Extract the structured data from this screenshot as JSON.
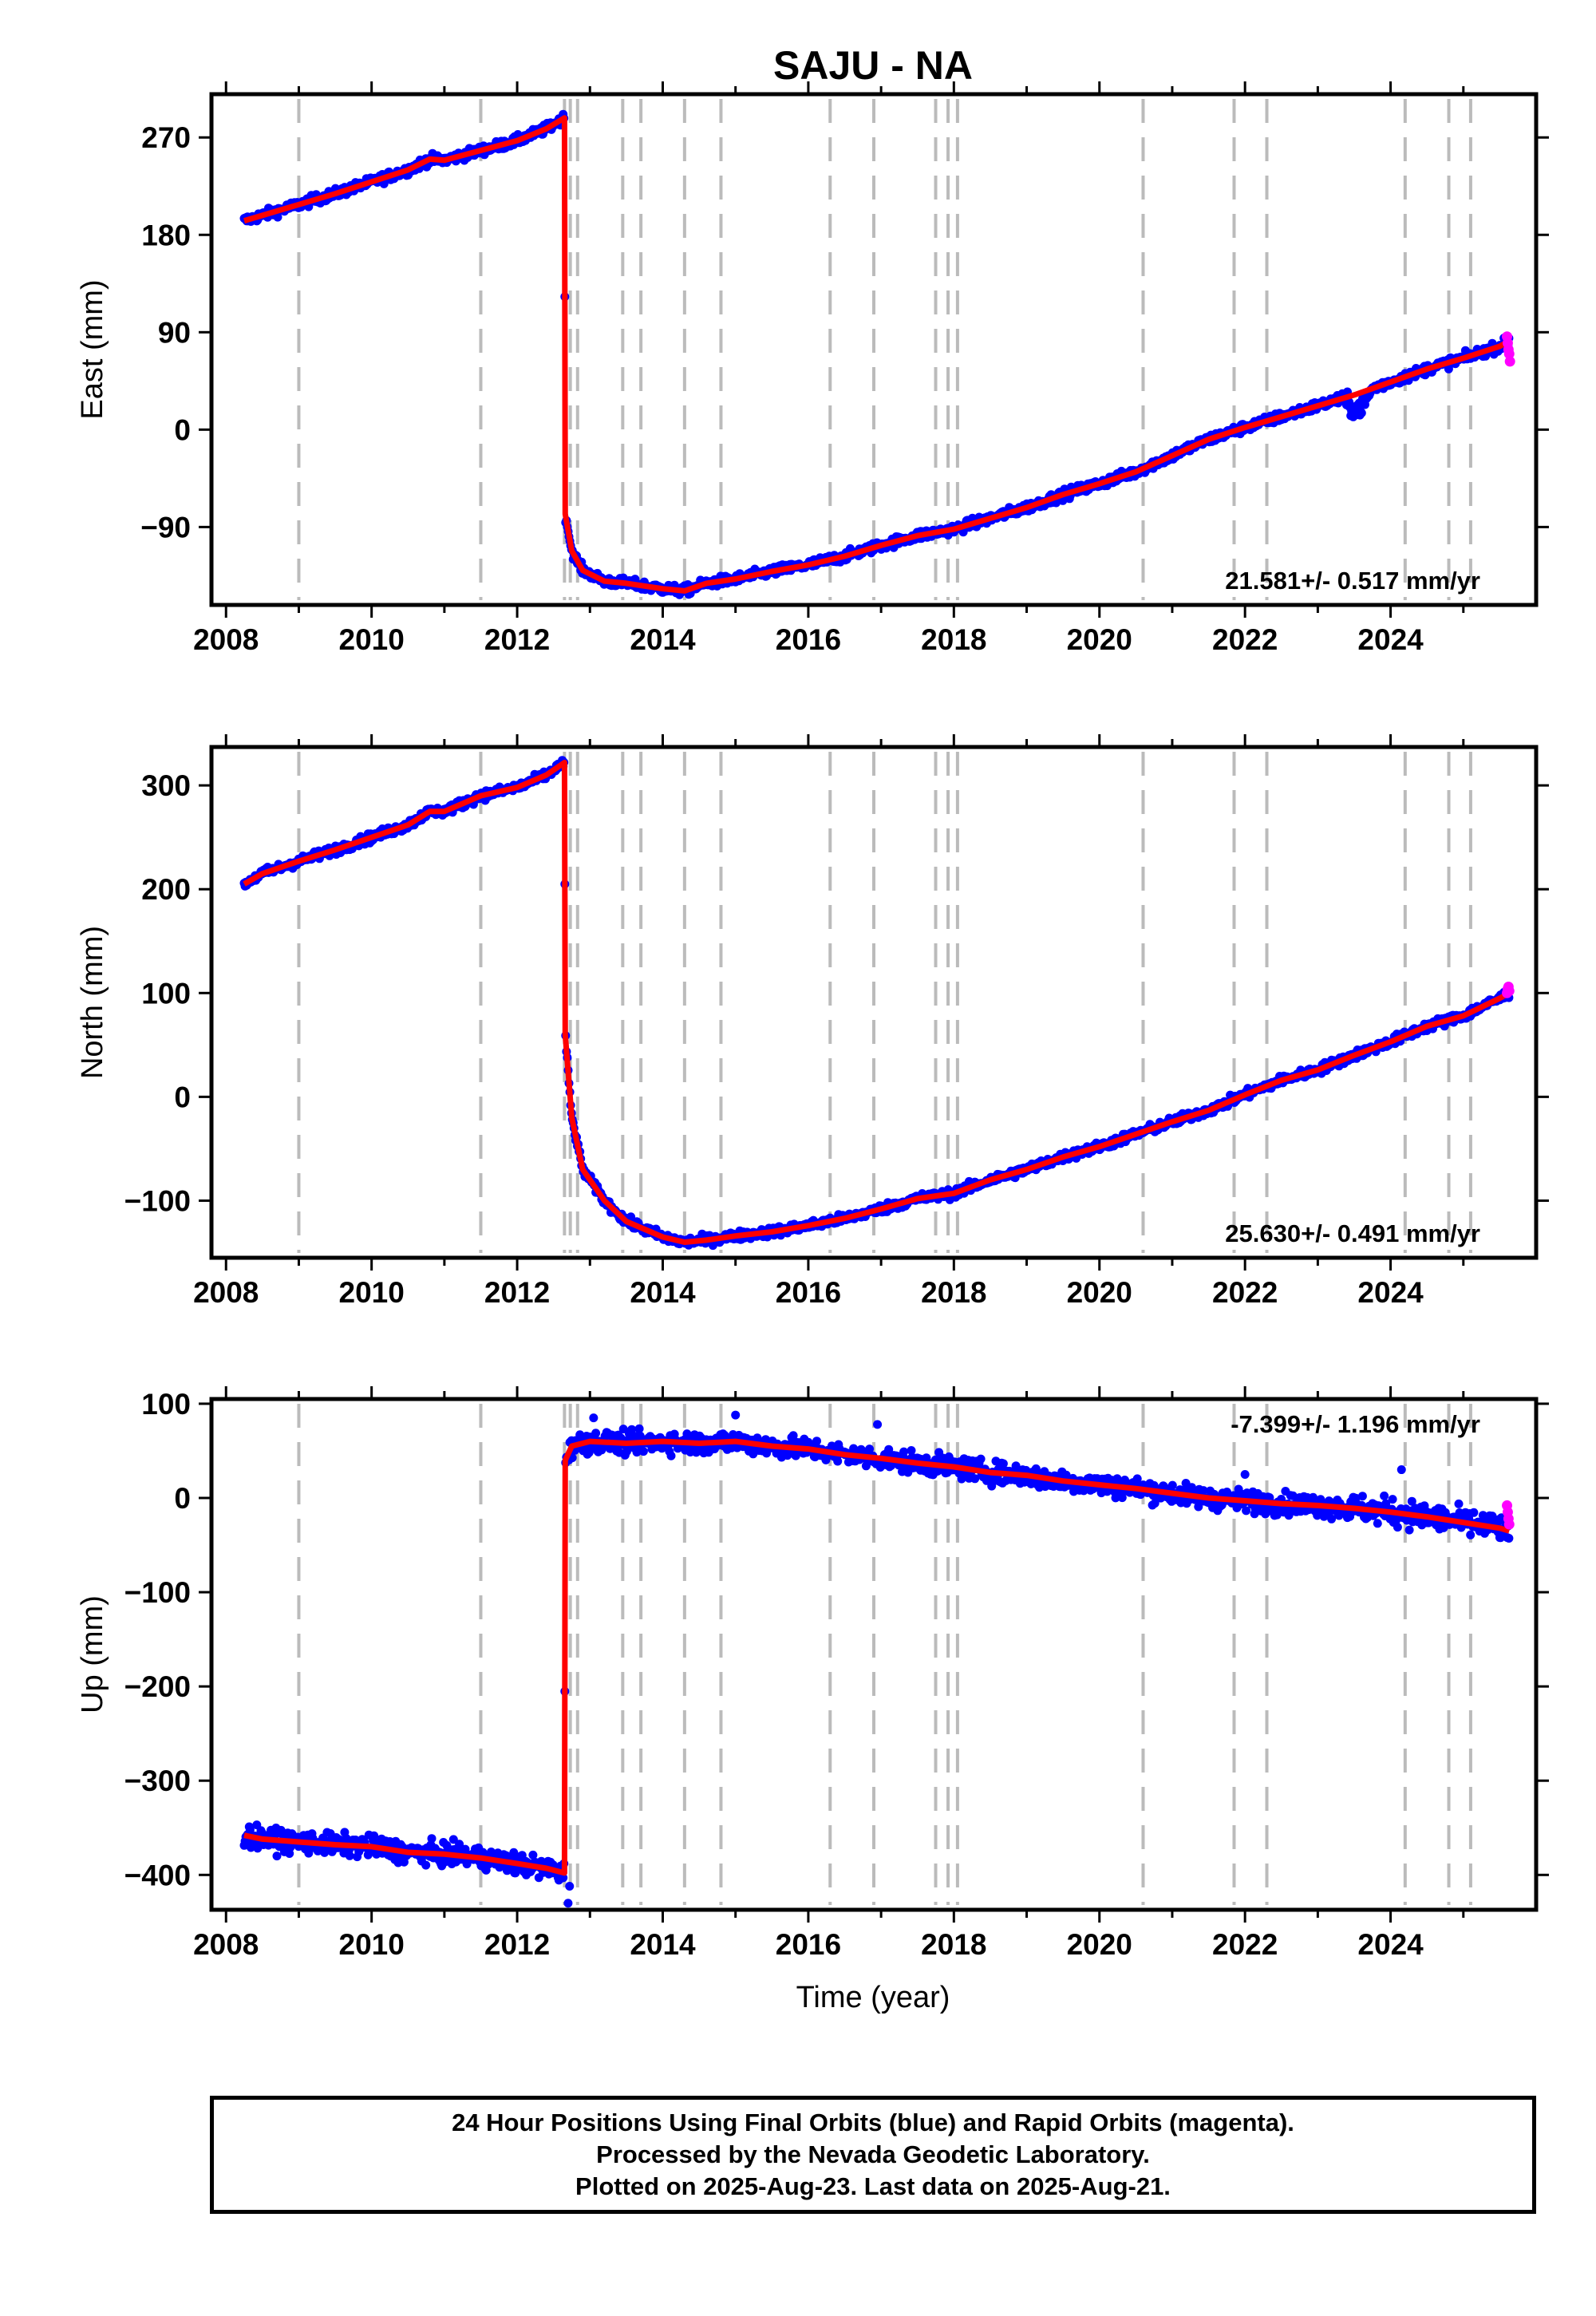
{
  "title": "SAJU - NA",
  "xlabel": "Time (year)",
  "colors": {
    "final_orbits": "#0000ff",
    "rapid_orbits": "#ff00ff",
    "model": "#ff0000",
    "event_lines": "#bbbbbb",
    "frame": "#000000"
  },
  "footer": {
    "line1": "24 Hour Positions Using Final Orbits (blue) and Rapid Orbits (magenta).",
    "line2": "Processed by the Nevada Geodetic Laboratory.",
    "line3": "Plotted on 2025-Aug-23. Last data on 2025-Aug-21."
  },
  "chart_data": [
    {
      "type": "scatter",
      "component": "East",
      "ylabel": "East (mm)",
      "rate_label": "21.581+/- 0.517 mm/yr",
      "rate_position": "bottom-right",
      "xlim": [
        2007.8,
        2026.0
      ],
      "ylim": [
        -162,
        310
      ],
      "xticks": [
        2008,
        2010,
        2012,
        2014,
        2016,
        2018,
        2020,
        2022,
        2024
      ],
      "yticks": [
        -90,
        0,
        90,
        180,
        270
      ],
      "grid": false,
      "event_lines": [
        2009.0,
        2011.5,
        2012.65,
        2012.73,
        2012.83,
        2013.45,
        2013.7,
        2014.3,
        2014.8,
        2016.3,
        2016.9,
        2017.75,
        2017.92,
        2018.05,
        2020.6,
        2021.85,
        2022.3,
        2024.2,
        2024.8,
        2025.1
      ],
      "model_trend": [
        [
          2008.25,
          193
        ],
        [
          2008.5,
          198
        ],
        [
          2009.0,
          208
        ],
        [
          2009.5,
          218
        ],
        [
          2010.0,
          229
        ],
        [
          2010.5,
          240
        ],
        [
          2010.8,
          250
        ],
        [
          2011.0,
          249
        ],
        [
          2011.5,
          258
        ],
        [
          2012.0,
          267
        ],
        [
          2012.4,
          278
        ],
        [
          2012.65,
          288
        ],
        [
          2012.66,
          -78
        ],
        [
          2012.75,
          -112
        ],
        [
          2012.9,
          -130
        ],
        [
          2013.2,
          -140
        ],
        [
          2013.5,
          -142
        ],
        [
          2014.0,
          -147
        ],
        [
          2014.3,
          -149
        ],
        [
          2014.6,
          -142
        ],
        [
          2015.0,
          -138
        ],
        [
          2015.5,
          -131
        ],
        [
          2016.0,
          -125
        ],
        [
          2016.5,
          -117
        ],
        [
          2017.0,
          -107
        ],
        [
          2017.5,
          -98
        ],
        [
          2018.0,
          -92
        ],
        [
          2018.5,
          -82
        ],
        [
          2019.0,
          -72
        ],
        [
          2019.5,
          -60
        ],
        [
          2020.0,
          -50
        ],
        [
          2020.5,
          -39
        ],
        [
          2021.0,
          -24
        ],
        [
          2021.5,
          -9
        ],
        [
          2022.0,
          2
        ],
        [
          2022.5,
          12
        ],
        [
          2023.0,
          22
        ],
        [
          2023.5,
          32
        ],
        [
          2024.0,
          44
        ],
        [
          2024.5,
          56
        ],
        [
          2025.0,
          66
        ],
        [
          2025.5,
          77
        ],
        [
          2025.63,
          82
        ]
      ],
      "rapid_points": [
        [
          2025.6,
          86
        ],
        [
          2025.61,
          80
        ],
        [
          2025.62,
          74
        ],
        [
          2025.63,
          70
        ],
        [
          2025.64,
          63
        ]
      ]
    },
    {
      "type": "scatter",
      "component": "North",
      "ylabel": "North (mm)",
      "rate_label": "25.630+/- 0.491 mm/yr",
      "rate_position": "bottom-right",
      "xlim": [
        2007.8,
        2026.0
      ],
      "ylim": [
        -155,
        337
      ],
      "xticks": [
        2008,
        2010,
        2012,
        2014,
        2016,
        2018,
        2020,
        2022,
        2024
      ],
      "yticks": [
        -100,
        0,
        100,
        200,
        300
      ],
      "grid": false,
      "event_lines": [
        2009.0,
        2011.5,
        2012.65,
        2012.73,
        2012.83,
        2013.45,
        2013.7,
        2014.3,
        2014.8,
        2016.3,
        2016.9,
        2017.75,
        2017.92,
        2018.05,
        2020.6,
        2021.85,
        2022.3,
        2024.2,
        2024.8,
        2025.1
      ],
      "model_trend": [
        [
          2008.25,
          205
        ],
        [
          2008.5,
          215
        ],
        [
          2009.0,
          227
        ],
        [
          2009.5,
          238
        ],
        [
          2010.0,
          250
        ],
        [
          2010.5,
          262
        ],
        [
          2010.8,
          275
        ],
        [
          2011.0,
          275
        ],
        [
          2011.5,
          290
        ],
        [
          2012.0,
          298
        ],
        [
          2012.4,
          310
        ],
        [
          2012.65,
          322
        ],
        [
          2012.66,
          60
        ],
        [
          2012.75,
          -20
        ],
        [
          2012.9,
          -70
        ],
        [
          2013.2,
          -100
        ],
        [
          2013.5,
          -120
        ],
        [
          2014.0,
          -135
        ],
        [
          2014.3,
          -140
        ],
        [
          2014.6,
          -138
        ],
        [
          2015.0,
          -134
        ],
        [
          2015.5,
          -130
        ],
        [
          2016.0,
          -124
        ],
        [
          2016.5,
          -117
        ],
        [
          2017.0,
          -108
        ],
        [
          2017.5,
          -98
        ],
        [
          2018.0,
          -93
        ],
        [
          2018.5,
          -80
        ],
        [
          2019.0,
          -70
        ],
        [
          2019.5,
          -58
        ],
        [
          2020.0,
          -48
        ],
        [
          2020.5,
          -36
        ],
        [
          2021.0,
          -24
        ],
        [
          2021.5,
          -13
        ],
        [
          2022.0,
          2
        ],
        [
          2022.5,
          16
        ],
        [
          2023.0,
          26
        ],
        [
          2023.5,
          40
        ],
        [
          2024.0,
          53
        ],
        [
          2024.5,
          68
        ],
        [
          2025.0,
          78
        ],
        [
          2025.5,
          95
        ],
        [
          2025.63,
          100
        ]
      ],
      "rapid_points": [
        [
          2025.6,
          100
        ],
        [
          2025.61,
          104
        ],
        [
          2025.62,
          106
        ],
        [
          2025.63,
          102
        ]
      ]
    },
    {
      "type": "scatter",
      "component": "Up",
      "ylabel": "Up (mm)",
      "rate_label": "-7.399+/- 1.196 mm/yr",
      "rate_position": "top-right",
      "xlim": [
        2007.8,
        2026.0
      ],
      "ylim": [
        -437,
        105
      ],
      "xticks": [
        2008,
        2010,
        2012,
        2014,
        2016,
        2018,
        2020,
        2022,
        2024
      ],
      "yticks": [
        -400,
        -300,
        -200,
        -100,
        0,
        100
      ],
      "grid": false,
      "event_lines": [
        2009.0,
        2011.5,
        2012.65,
        2012.73,
        2012.83,
        2013.45,
        2013.7,
        2014.3,
        2014.8,
        2016.3,
        2016.9,
        2017.75,
        2017.92,
        2018.05,
        2020.6,
        2021.85,
        2022.3,
        2024.2,
        2024.8,
        2025.1
      ],
      "model_trend": [
        [
          2008.25,
          -358
        ],
        [
          2008.5,
          -362
        ],
        [
          2009.0,
          -365
        ],
        [
          2009.5,
          -368
        ],
        [
          2010.0,
          -370
        ],
        [
          2010.5,
          -376
        ],
        [
          2011.0,
          -378
        ],
        [
          2011.5,
          -382
        ],
        [
          2012.0,
          -388
        ],
        [
          2012.4,
          -393
        ],
        [
          2012.65,
          -398
        ],
        [
          2012.66,
          40
        ],
        [
          2012.75,
          55
        ],
        [
          2013.0,
          60
        ],
        [
          2013.5,
          58
        ],
        [
          2014.0,
          60
        ],
        [
          2014.5,
          58
        ],
        [
          2015.0,
          60
        ],
        [
          2015.5,
          55
        ],
        [
          2016.0,
          52
        ],
        [
          2016.5,
          46
        ],
        [
          2017.0,
          42
        ],
        [
          2017.5,
          37
        ],
        [
          2018.0,
          33
        ],
        [
          2018.5,
          27
        ],
        [
          2019.0,
          24
        ],
        [
          2019.5,
          18
        ],
        [
          2020.0,
          14
        ],
        [
          2020.5,
          10
        ],
        [
          2021.0,
          5
        ],
        [
          2021.5,
          0
        ],
        [
          2022.0,
          -3
        ],
        [
          2022.5,
          -6
        ],
        [
          2023.0,
          -8
        ],
        [
          2023.5,
          -11
        ],
        [
          2024.0,
          -15
        ],
        [
          2024.5,
          -20
        ],
        [
          2025.0,
          -26
        ],
        [
          2025.5,
          -32
        ],
        [
          2025.63,
          -35
        ]
      ],
      "rapid_points": [
        [
          2025.6,
          -8
        ],
        [
          2025.61,
          -15
        ],
        [
          2025.62,
          -22
        ],
        [
          2025.63,
          -28
        ]
      ]
    }
  ]
}
